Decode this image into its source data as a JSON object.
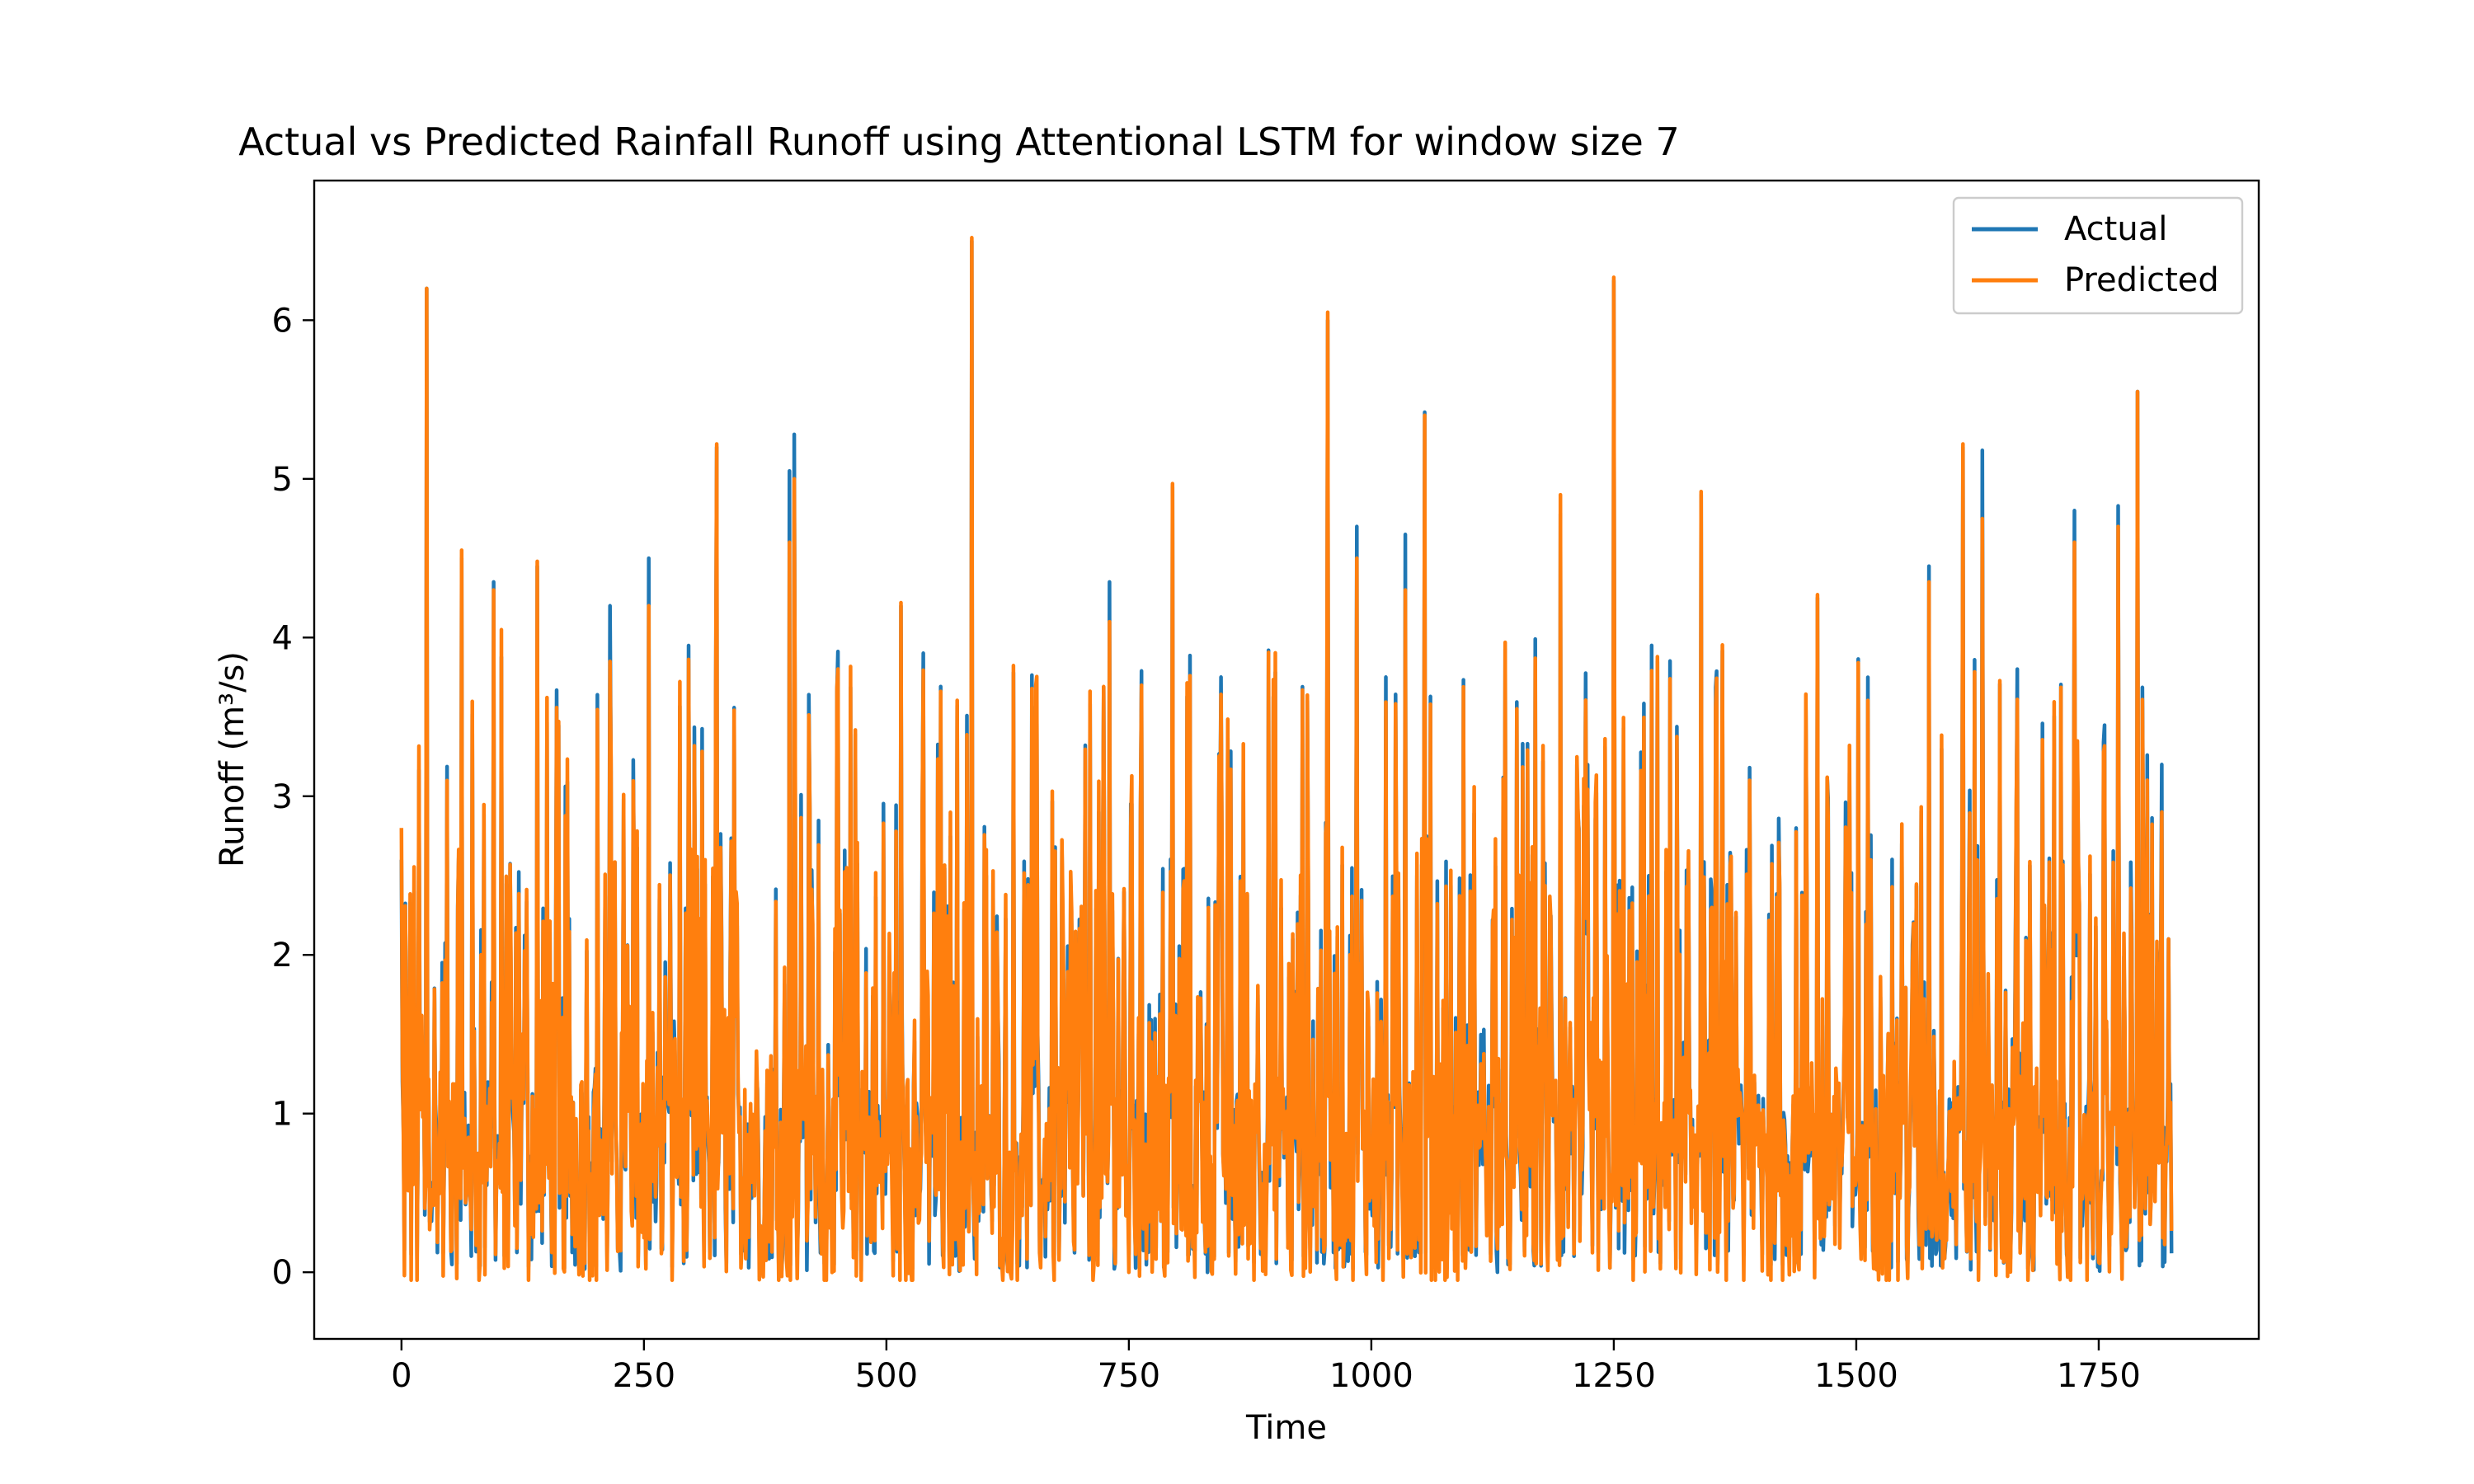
{
  "chart_data": {
    "type": "line",
    "title": "Actual vs Predicted Rainfall Runoff using Attentional LSTM for window size 7",
    "xlabel": "Time",
    "ylabel": "Runoff (m³/s)",
    "xlim": [
      -90,
      1915
    ],
    "ylim": [
      -0.42,
      6.88
    ],
    "x_ticks": [
      0,
      250,
      500,
      750,
      1000,
      1250,
      1500,
      1750
    ],
    "y_ticks": [
      0,
      1,
      2,
      3,
      4,
      5,
      6
    ],
    "grid": false,
    "legend_position": "upper right",
    "n_points": 1826,
    "series": [
      {
        "name": "Actual",
        "color": "#1f77b4",
        "peaks": [
          [
            0,
            2.6
          ],
          [
            26,
            6.2
          ],
          [
            62,
            4.5
          ],
          [
            95,
            4.35
          ],
          [
            140,
            4.45
          ],
          [
            215,
            4.2
          ],
          [
            255,
            4.5
          ],
          [
            325,
            5.2
          ],
          [
            400,
            5.05
          ],
          [
            405,
            5.28
          ],
          [
            515,
            4.2
          ],
          [
            588,
            6.5
          ],
          [
            730,
            4.35
          ],
          [
            795,
            4.95
          ],
          [
            955,
            6.0
          ],
          [
            985,
            4.7
          ],
          [
            1035,
            4.65
          ],
          [
            1055,
            5.42
          ],
          [
            1195,
            4.78
          ],
          [
            1250,
            6.25
          ],
          [
            1340,
            4.9
          ],
          [
            1390,
            3.18
          ],
          [
            1460,
            4.25
          ],
          [
            1575,
            4.45
          ],
          [
            1610,
            5.2
          ],
          [
            1630,
            5.18
          ],
          [
            1725,
            4.8
          ],
          [
            1770,
            4.83
          ],
          [
            1790,
            5.55
          ],
          [
            1815,
            3.2
          ],
          [
            1822,
            2.1
          ]
        ],
        "values_note": ""
      },
      {
        "name": "Predicted",
        "color": "#ff7f0e",
        "peaks": [
          [
            0,
            2.8
          ],
          [
            26,
            6.2
          ],
          [
            62,
            4.55
          ],
          [
            95,
            4.3
          ],
          [
            140,
            4.48
          ],
          [
            215,
            3.85
          ],
          [
            255,
            4.2
          ],
          [
            325,
            5.22
          ],
          [
            400,
            4.6
          ],
          [
            405,
            5.0
          ],
          [
            515,
            4.22
          ],
          [
            588,
            6.52
          ],
          [
            730,
            4.1
          ],
          [
            795,
            4.97
          ],
          [
            955,
            6.05
          ],
          [
            985,
            4.5
          ],
          [
            1035,
            4.3
          ],
          [
            1055,
            5.4
          ],
          [
            1195,
            4.9
          ],
          [
            1250,
            6.27
          ],
          [
            1340,
            4.92
          ],
          [
            1390,
            3.1
          ],
          [
            1460,
            4.27
          ],
          [
            1575,
            4.35
          ],
          [
            1610,
            5.22
          ],
          [
            1630,
            4.75
          ],
          [
            1725,
            4.6
          ],
          [
            1770,
            4.7
          ],
          [
            1790,
            5.55
          ],
          [
            1815,
            2.9
          ],
          [
            1822,
            2.1
          ]
        ]
      }
    ]
  },
  "legend": {
    "items": [
      {
        "label": "Actual",
        "color": "#1f77b4"
      },
      {
        "label": "Predicted",
        "color": "#ff7f0e"
      }
    ]
  }
}
